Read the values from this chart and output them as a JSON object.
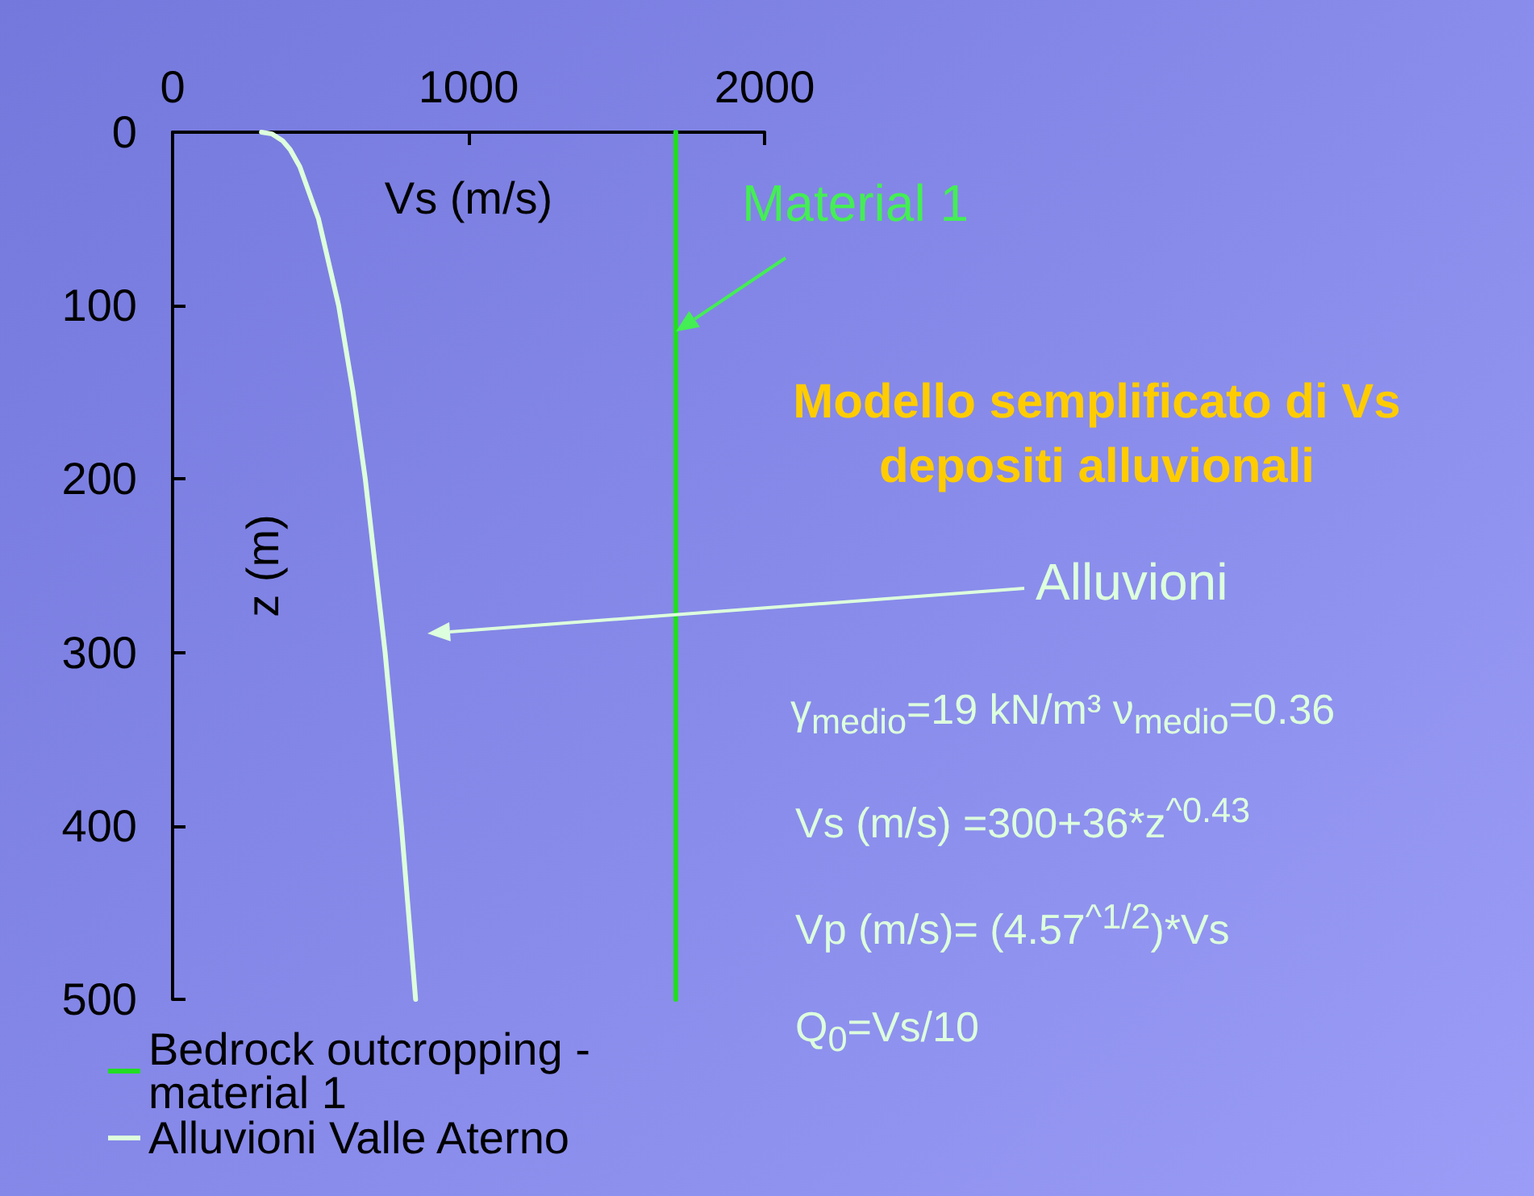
{
  "chart_data": {
    "type": "line",
    "title": "Modello semplificato di Vs\ndepositi alluvionali",
    "xlabel": "Vs (m/s)",
    "ylabel": "z (m)",
    "xlim": [
      0,
      2000
    ],
    "xticks": [
      0,
      1000,
      2000
    ],
    "ylim": [
      500,
      0
    ],
    "yticks": [
      0,
      100,
      200,
      300,
      400,
      500
    ],
    "grid": false,
    "legend": "bottom left",
    "marker": "none",
    "line_style": "solid",
    "series": [
      {
        "name": "Bedrock outcropping - material 1",
        "color": "#22dd22",
        "x": [
          1700,
          1700
        ],
        "values": [
          0,
          500
        ]
      },
      {
        "name": "Alluvioni Valle Aterno",
        "color": "#ddffdd",
        "x": [
          300,
          336,
          372,
          397,
          430,
          493,
          561,
          610,
          651,
          718,
          773,
          821
        ],
        "values": [
          0,
          1,
          5,
          10,
          20,
          50,
          100,
          150,
          200,
          300,
          400,
          500
        ]
      }
    ],
    "annotations": [
      {
        "text": "Material 1",
        "x": 1700,
        "y": 115
      },
      "Alluvioni",
      "γ$_{medio}$=19 kN/m³  ν$_{medio}$=0.36",
      "Vs (m/s) =300+36*z$^{^0.43}$",
      "Vp (m/s)= (4.57$^{^1/2}$)*Vs",
      "Q$_{0}$=Vs/10"
    ]
  }
}
